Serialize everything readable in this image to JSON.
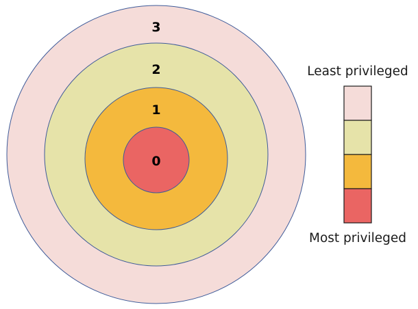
{
  "rings": [
    {
      "label": "3",
      "color": "#f5dcd9"
    },
    {
      "label": "2",
      "color": "#e6e3a9"
    },
    {
      "label": "1",
      "color": "#f4b93d"
    },
    {
      "label": "0",
      "color": "#ea6563"
    }
  ],
  "ring_stroke": "#3d5a99",
  "legend": {
    "top_caption": "Least privileged",
    "bottom_caption": "Most privileged",
    "swatches": [
      {
        "color": "#f5dcd9"
      },
      {
        "color": "#e6e3a9"
      },
      {
        "color": "#f4b93d"
      },
      {
        "color": "#ea6563"
      }
    ],
    "border_color": "#1a1a1a"
  }
}
